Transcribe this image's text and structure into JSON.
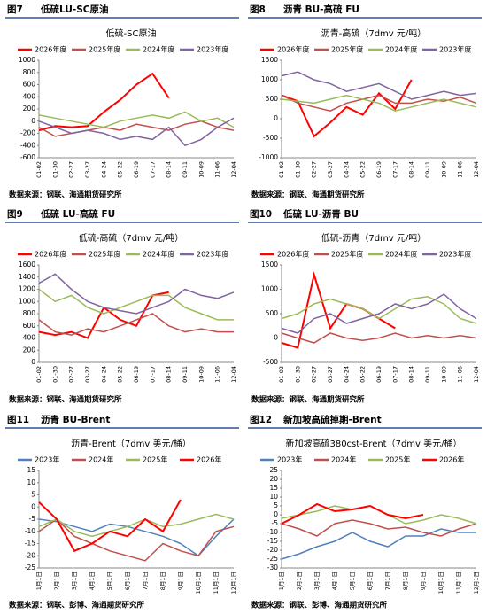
{
  "chart_data": [
    {
      "type": "line",
      "figure": "图7",
      "name": "低硫LU-SC原油",
      "title": "低硫-SC原油",
      "categories": [
        "01-02",
        "01-30",
        "02-27",
        "03-27",
        "04-24",
        "05-22",
        "06-19",
        "07-17",
        "08-14",
        "09-11",
        "10-09",
        "11-06",
        "12-04"
      ],
      "ylim": [
        -600,
        1000
      ],
      "yticks": [
        -600,
        -400,
        -200,
        0,
        200,
        400,
        600,
        800,
        1000
      ],
      "series": [
        {
          "name": "2026年度",
          "color": "#ff0000",
          "values": [
            -150,
            -80,
            -100,
            -80,
            150,
            350,
            600,
            780,
            380,
            null,
            null,
            null,
            null
          ]
        },
        {
          "name": "2025年度",
          "color": "#c0504d",
          "values": [
            -100,
            -250,
            -200,
            -150,
            -100,
            -150,
            -50,
            -100,
            -150,
            -50,
            0,
            -100,
            -150
          ]
        },
        {
          "name": "2024年度",
          "color": "#9bbb59",
          "values": [
            100,
            50,
            0,
            -50,
            -100,
            0,
            50,
            100,
            50,
            150,
            0,
            50,
            -100
          ]
        },
        {
          "name": "2023年度",
          "color": "#8064a2",
          "values": [
            0,
            -100,
            -200,
            -150,
            -200,
            -300,
            -250,
            -300,
            -100,
            -400,
            -300,
            -100,
            50
          ]
        }
      ],
      "source": "数据来源：钢联、海通期货研究所"
    },
    {
      "type": "line",
      "figure": "图8",
      "name": "沥青 BU-高硫 FU",
      "title": "沥青-高硫（7dmv 元/吨）",
      "categories": [
        "01-02",
        "01-30",
        "02-27",
        "03-27",
        "04-24",
        "05-22",
        "06-19",
        "07-17",
        "08-14",
        "09-11",
        "10-09",
        "11-06",
        "12-04"
      ],
      "ylim": [
        -1000,
        1500
      ],
      "yticks": [
        -1000,
        -500,
        0,
        500,
        1000,
        1500
      ],
      "series": [
        {
          "name": "2026年度",
          "color": "#ff0000",
          "values": [
            600,
            450,
            -450,
            -100,
            300,
            100,
            650,
            250,
            1000,
            null,
            null,
            null,
            null
          ]
        },
        {
          "name": "2025年度",
          "color": "#c0504d",
          "values": [
            600,
            400,
            300,
            200,
            400,
            500,
            600,
            400,
            400,
            500,
            450,
            550,
            400
          ]
        },
        {
          "name": "2024年度",
          "color": "#9bbb59",
          "values": [
            500,
            450,
            400,
            500,
            600,
            500,
            400,
            200,
            300,
            400,
            500,
            400,
            300
          ]
        },
        {
          "name": "2023年度",
          "color": "#8064a2",
          "values": [
            1100,
            1200,
            1000,
            900,
            700,
            800,
            900,
            700,
            500,
            600,
            700,
            600,
            650
          ]
        }
      ],
      "source": "数据来源：钢联、海通期货研究所"
    },
    {
      "type": "line",
      "figure": "图9",
      "name": "低硫 LU-高硫 FU",
      "title": "低硫-高硫（7dmv 元/吨）",
      "categories": [
        "01-02",
        "01-30",
        "02-27",
        "03-27",
        "04-24",
        "05-22",
        "06-19",
        "07-17",
        "08-14",
        "09-11",
        "10-09",
        "11-06",
        "12-04"
      ],
      "ylim": [
        0,
        1600
      ],
      "yticks": [
        0,
        200,
        400,
        600,
        800,
        1000,
        1200,
        1400,
        1600
      ],
      "series": [
        {
          "name": "2026年度",
          "color": "#ff0000",
          "values": [
            500,
            450,
            500,
            400,
            900,
            700,
            600,
            1100,
            1150,
            null,
            null,
            null,
            null
          ]
        },
        {
          "name": "2025年度",
          "color": "#c0504d",
          "values": [
            700,
            500,
            450,
            550,
            500,
            600,
            700,
            800,
            600,
            500,
            550,
            500,
            500
          ]
        },
        {
          "name": "2024年度",
          "color": "#9bbb59",
          "values": [
            1200,
            1000,
            1100,
            900,
            800,
            900,
            1000,
            1100,
            1100,
            900,
            800,
            700,
            700
          ]
        },
        {
          "name": "2023年度",
          "color": "#8064a2",
          "values": [
            1300,
            1450,
            1200,
            1000,
            900,
            850,
            800,
            900,
            1000,
            1200,
            1100,
            1050,
            1150
          ]
        }
      ],
      "source": "数据来源：钢联、海通期货研究所"
    },
    {
      "type": "line",
      "figure": "图10",
      "name": "低硫 LU-沥青 BU",
      "title": "低硫-沥青（7dmv 元/吨）",
      "categories": [
        "01-02",
        "01-30",
        "02-27",
        "03-27",
        "04-24",
        "05-22",
        "06-19",
        "07-17",
        "08-14",
        "09-11",
        "10-09",
        "11-06",
        "12-04"
      ],
      "ylim": [
        -500,
        1500
      ],
      "yticks": [
        -500,
        0,
        500,
        1000,
        1500
      ],
      "series": [
        {
          "name": "2026年度",
          "color": "#ff0000",
          "values": [
            -100,
            -200,
            1300,
            200,
            700,
            600,
            400,
            200,
            null,
            null,
            null,
            null,
            null
          ]
        },
        {
          "name": "2025年度",
          "color": "#c0504d",
          "values": [
            100,
            0,
            -100,
            100,
            0,
            -50,
            0,
            100,
            0,
            50,
            0,
            50,
            0
          ]
        },
        {
          "name": "2024年度",
          "color": "#9bbb59",
          "values": [
            400,
            500,
            700,
            800,
            700,
            600,
            400,
            600,
            800,
            850,
            700,
            400,
            300
          ]
        },
        {
          "name": "2023年度",
          "color": "#8064a2",
          "values": [
            200,
            100,
            400,
            500,
            300,
            400,
            500,
            700,
            600,
            700,
            900,
            600,
            400
          ]
        }
      ],
      "source": "数据来源：钢联、海通期货研究所"
    },
    {
      "type": "line",
      "figure": "图11",
      "name": "沥青 BU-Brent",
      "title": "沥青-Brent（7dmv 美元/桶）",
      "categories": [
        "1月1日",
        "2月1日",
        "3月1日",
        "4月1日",
        "5月1日",
        "6月1日",
        "7月1日",
        "8月1日",
        "9月1日",
        "10月1日",
        "11月1日",
        "12月1日"
      ],
      "ylim": [
        -25,
        15
      ],
      "yticks": [
        -25,
        -20,
        -15,
        -10,
        -5,
        0,
        5,
        10,
        15
      ],
      "series": [
        {
          "name": "2023年",
          "color": "#4f81bd",
          "values": [
            -5,
            -6,
            -8,
            -10,
            -7,
            -8,
            -10,
            -12,
            -15,
            -20,
            -12,
            -5
          ]
        },
        {
          "name": "2024年",
          "color": "#c0504d",
          "values": [
            -10,
            -5,
            -12,
            -15,
            -18,
            -20,
            -22,
            -15,
            -18,
            -20,
            -10,
            -8
          ]
        },
        {
          "name": "2025年",
          "color": "#9bbb59",
          "values": [
            -8,
            -5,
            -10,
            -12,
            -10,
            -8,
            -5,
            -8,
            -7,
            -5,
            -3,
            -5
          ]
        },
        {
          "name": "2026年",
          "color": "#ff0000",
          "values": [
            2,
            -5,
            -18,
            -15,
            -10,
            -12,
            -5,
            -10,
            3,
            null,
            null,
            null
          ]
        }
      ],
      "source": "数据来源：钢联、彭博、海通期货研究所"
    },
    {
      "type": "line",
      "figure": "图12",
      "name": "新加坡高硫掉期-Brent",
      "title": "新加坡高硫380cst-Brent（7dmv 美元/桶）",
      "categories": [
        "1月1日",
        "2月1日",
        "3月1日",
        "4月1日",
        "5月1日",
        "6月1日",
        "7月1日",
        "8月1日",
        "9月1日",
        "10月1日",
        "11月1日",
        "12月1日"
      ],
      "ylim": [
        -30,
        25
      ],
      "yticks": [
        -30,
        -25,
        -20,
        -15,
        -10,
        -5,
        0,
        5,
        10,
        15,
        20,
        25
      ],
      "series": [
        {
          "name": "2023年",
          "color": "#4f81bd",
          "values": [
            -25,
            -22,
            -18,
            -15,
            -10,
            -15,
            -18,
            -12,
            -12,
            -8,
            -10,
            -10
          ]
        },
        {
          "name": "2024年",
          "color": "#c0504d",
          "values": [
            -5,
            -8,
            -12,
            -5,
            -3,
            -5,
            -8,
            -7,
            -10,
            -12,
            -8,
            -5
          ]
        },
        {
          "name": "2025年",
          "color": "#9bbb59",
          "values": [
            -2,
            0,
            2,
            5,
            3,
            5,
            0,
            -5,
            -3,
            0,
            -2,
            -5
          ]
        },
        {
          "name": "2026年",
          "color": "#ff0000",
          "values": [
            -5,
            0,
            6,
            2,
            3,
            5,
            0,
            -2,
            0,
            null,
            null,
            null
          ]
        }
      ],
      "source": "数据来源：钢联、彭博、海通期货研究所"
    }
  ]
}
